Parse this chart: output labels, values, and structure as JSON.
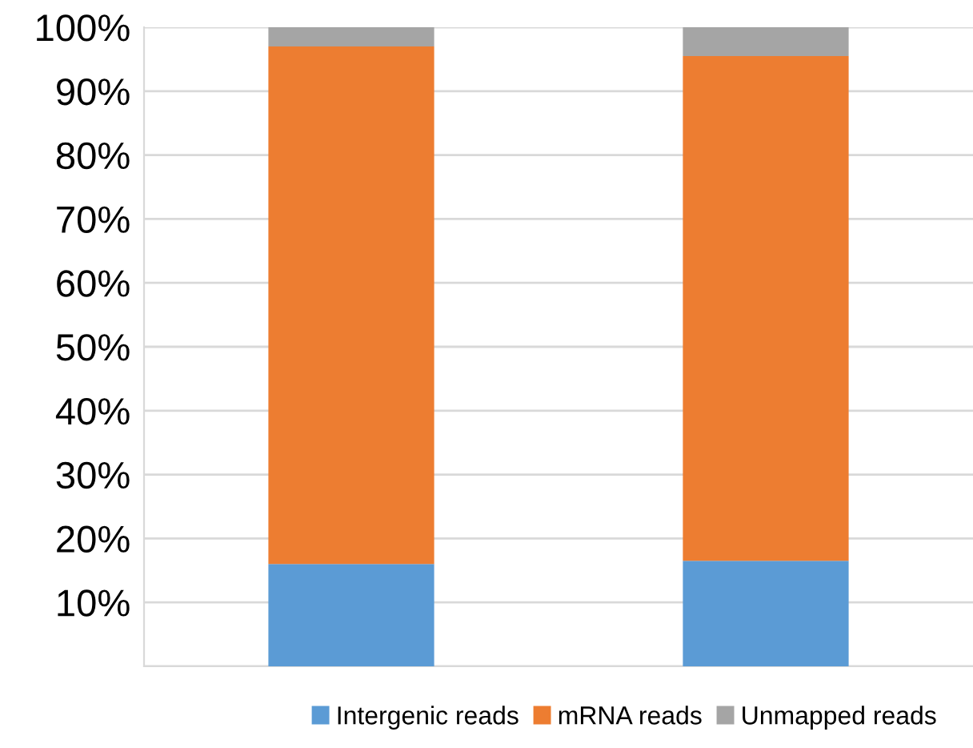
{
  "chart_data": {
    "type": "bar",
    "stacked": true,
    "categories": [
      null,
      null
    ],
    "series": [
      {
        "name": "Intergenic reads",
        "color": "#5b9bd5",
        "values": [
          16,
          16.5
        ]
      },
      {
        "name": "mRNA reads",
        "color": "#ed7d31",
        "values": [
          81,
          79
        ]
      },
      {
        "name": "Unmapped reads",
        "color": "#a5a5a5",
        "values": [
          3,
          4.5
        ]
      }
    ],
    "ylim": [
      0,
      100
    ],
    "yticks": [
      {
        "value": 0,
        "label": null
      },
      {
        "value": 10,
        "label": "10%"
      },
      {
        "value": 20,
        "label": "20%"
      },
      {
        "value": 30,
        "label": "30%"
      },
      {
        "value": 40,
        "label": "40%"
      },
      {
        "value": 50,
        "label": "50%"
      },
      {
        "value": 60,
        "label": "60%"
      },
      {
        "value": 70,
        "label": "70%"
      },
      {
        "value": 80,
        "label": "80%"
      },
      {
        "value": 90,
        "label": "90%"
      },
      {
        "value": 100,
        "label": "100%"
      }
    ],
    "grid": "y",
    "legend": "bottom"
  }
}
